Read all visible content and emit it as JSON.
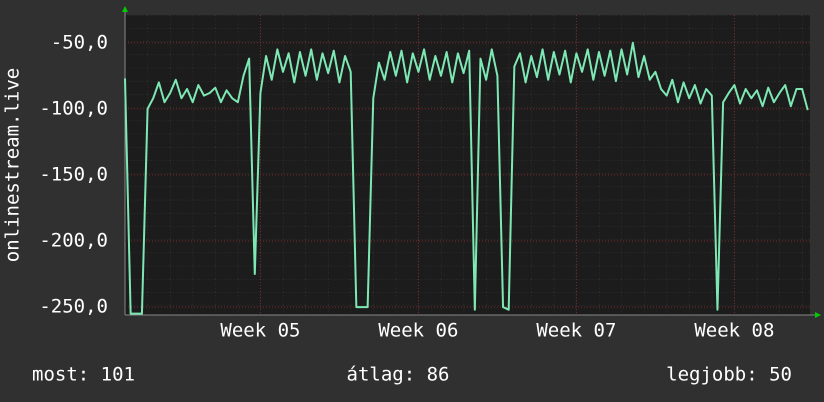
{
  "chart_data": {
    "type": "line",
    "ylabel": "onlinestream.live",
    "color": "#7ee8b4",
    "x": [
      0,
      0.25,
      0.5,
      0.75,
      1,
      1.25,
      1.5,
      1.75,
      2,
      2.25,
      2.5,
      2.75,
      3,
      3.25,
      3.5,
      3.75,
      4,
      4.25,
      4.5,
      4.75,
      5,
      5.25,
      5.5,
      5.75,
      6,
      6.25,
      6.5,
      6.75,
      7,
      7.25,
      7.5,
      7.75,
      8,
      8.25,
      8.5,
      8.75,
      9,
      9.25,
      9.5,
      9.75,
      10,
      10.25,
      10.5,
      10.75,
      11,
      11.25,
      11.5,
      11.75,
      12,
      12.25,
      12.5,
      12.75,
      13,
      13.25,
      13.5,
      13.75,
      14,
      14.25,
      14.5,
      14.75,
      15,
      15.25,
      15.5,
      15.75,
      16,
      16.25,
      16.5,
      16.75,
      17,
      17.25,
      17.5,
      17.75,
      18,
      18.25,
      18.5,
      18.75,
      19,
      19.25,
      19.5,
      19.75,
      20,
      20.25,
      20.5,
      20.75,
      21,
      21.25,
      21.5,
      21.75,
      22,
      22.25,
      22.5,
      22.75,
      23,
      23.25,
      23.5,
      23.75,
      24,
      24.25,
      24.5,
      24.75,
      25,
      25.25,
      25.5,
      25.75,
      26,
      26.25,
      26.5,
      26.75,
      27,
      27.25,
      27.5,
      27.75,
      28,
      28.25,
      28.5,
      28.75,
      29,
      29.25,
      29.5,
      29.75,
      30,
      30.25
    ],
    "values": [
      -77,
      -255,
      -255,
      -255,
      -100,
      -92,
      -80,
      -95,
      -88,
      -78,
      -92,
      -85,
      -95,
      -82,
      -90,
      -88,
      -84,
      -95,
      -86,
      -92,
      -95,
      -75,
      -62,
      -225,
      -88,
      -60,
      -78,
      -55,
      -72,
      -58,
      -80,
      -57,
      -75,
      -55,
      -78,
      -58,
      -73,
      -56,
      -80,
      -60,
      -72,
      -250,
      -250,
      -250,
      -92,
      -65,
      -78,
      -57,
      -75,
      -56,
      -80,
      -58,
      -72,
      -55,
      -78,
      -60,
      -75,
      -57,
      -80,
      -58,
      -73,
      -56,
      -252,
      -62,
      -78,
      -55,
      -75,
      -250,
      -252,
      -68,
      -58,
      -80,
      -60,
      -76,
      -55,
      -78,
      -57,
      -74,
      -56,
      -80,
      -58,
      -72,
      -55,
      -78,
      -57,
      -75,
      -56,
      -79,
      -55,
      -74,
      -50,
      -76,
      -60,
      -78,
      -72,
      -85,
      -90,
      -78,
      -95,
      -80,
      -92,
      -82,
      -96,
      -85,
      -90,
      -252,
      -95,
      -88,
      -82,
      -96,
      -85,
      -92,
      -86,
      -98,
      -84,
      -95,
      -88,
      -82,
      -98,
      -85,
      -85,
      -101
    ],
    "xlim": [
      0,
      30.35
    ],
    "xticks": [
      {
        "value": 6,
        "label": "Week 05"
      },
      {
        "value": 13,
        "label": "Week 06"
      },
      {
        "value": 20,
        "label": "Week 07"
      },
      {
        "value": 27,
        "label": "Week 08"
      }
    ],
    "ylim": [
      -256,
      -29
    ],
    "yticks": [
      {
        "value": -50,
        "label": "-50,0"
      },
      {
        "value": -100,
        "label": "-100,0"
      },
      {
        "value": -150,
        "label": "-150,0"
      },
      {
        "value": -200,
        "label": "-200,0"
      },
      {
        "value": -250,
        "label": "-250,0"
      }
    ],
    "grid": true,
    "stats": [
      "most: 101",
      "átlag: 86",
      "legjobb: 50"
    ]
  }
}
